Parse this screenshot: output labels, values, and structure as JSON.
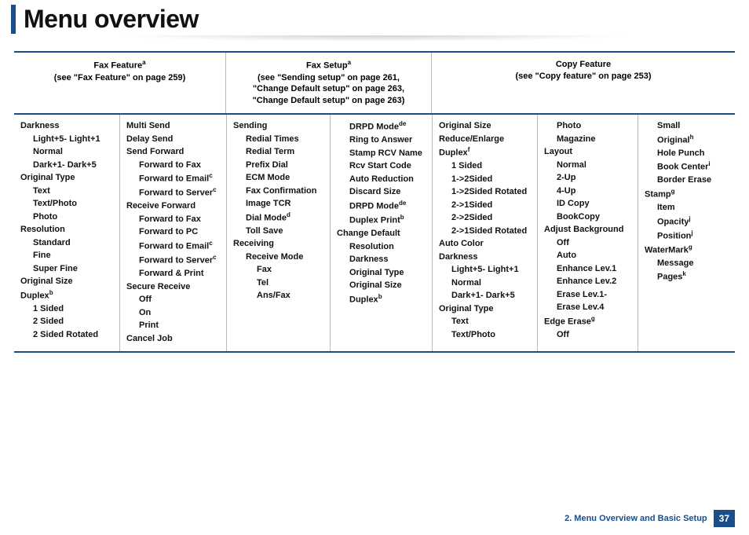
{
  "title": "Menu overview",
  "headers": {
    "faxFeature": {
      "title": "Fax Feature",
      "sup": "a",
      "sub": "(see \"Fax Feature\" on page 259)"
    },
    "faxSetup": {
      "title": "Fax Setup",
      "sup": "a",
      "sub1": "(see \"Sending setup\" on page 261,",
      "sub2": "\"Change Default setup\" on page 263,",
      "sub3": "\"Change Default setup\" on page 263)"
    },
    "copyFeature": {
      "title": "Copy Feature",
      "sub": "(see \"Copy feature\" on page 253)"
    }
  },
  "cols": {
    "c1": [
      {
        "t": "Darkness",
        "l": 0
      },
      {
        "t": "Light+5- Light+1",
        "l": 1
      },
      {
        "t": "Normal",
        "l": 1
      },
      {
        "t": "Dark+1- Dark+5",
        "l": 1
      },
      {
        "t": "Original Type",
        "l": 0
      },
      {
        "t": "Text",
        "l": 1
      },
      {
        "t": "Text/Photo",
        "l": 1
      },
      {
        "t": "Photo",
        "l": 1
      },
      {
        "t": "Resolution",
        "l": 0
      },
      {
        "t": "Standard",
        "l": 1
      },
      {
        "t": "Fine",
        "l": 1
      },
      {
        "t": "Super Fine",
        "l": 1
      },
      {
        "t": "Original Size",
        "l": 0
      },
      {
        "t": "Duplex",
        "sup": "b",
        "l": 0
      },
      {
        "t": "1 Sided",
        "l": 1
      },
      {
        "t": "2 Sided",
        "l": 1
      },
      {
        "t": "2 Sided Rotated",
        "l": 1
      }
    ],
    "c2": [
      {
        "t": "Multi Send",
        "l": 0
      },
      {
        "t": "Delay Send",
        "l": 0
      },
      {
        "t": "Send Forward",
        "l": 0
      },
      {
        "t": "Forward to Fax",
        "l": 1
      },
      {
        "t": "Forward to Email",
        "sup": "c",
        "l": 1
      },
      {
        "t": "Forward to Server",
        "sup": "c",
        "l": 1
      },
      {
        "t": "Receive Forward",
        "l": 0
      },
      {
        "t": "Forward to Fax",
        "l": 1
      },
      {
        "t": "Forward to PC",
        "l": 1
      },
      {
        "t": "Forward to Email",
        "sup": "c",
        "l": 1
      },
      {
        "t": "Forward to Server",
        "sup": "c",
        "l": 1
      },
      {
        "t": "Forward & Print",
        "l": 1
      },
      {
        "t": "Secure Receive",
        "l": 0
      },
      {
        "t": "Off",
        "l": 1
      },
      {
        "t": "On",
        "l": 1
      },
      {
        "t": "Print",
        "l": 1
      },
      {
        "t": "Cancel Job",
        "l": 0
      }
    ],
    "c3": [
      {
        "t": "Sending",
        "l": 0
      },
      {
        "t": "Redial Times",
        "l": 1
      },
      {
        "t": "Redial Term",
        "l": 1
      },
      {
        "t": "Prefix Dial",
        "l": 1
      },
      {
        "t": "ECM Mode",
        "l": 1
      },
      {
        "t": "Fax Confirmation",
        "l": 1
      },
      {
        "t": "Image TCR",
        "l": 1
      },
      {
        "t": "Dial Mode",
        "sup": "d",
        "l": 1
      },
      {
        "t": "Toll Save",
        "l": 1
      },
      {
        "t": "Receiving",
        "l": 0
      },
      {
        "t": "Receive Mode",
        "l": 1
      },
      {
        "t": "Fax",
        "l": 2
      },
      {
        "t": "Tel",
        "l": 2
      },
      {
        "t": "Ans/Fax",
        "l": 2
      }
    ],
    "c4": [
      {
        "t": "DRPD Mode",
        "sup": "de",
        "l": 1
      },
      {
        "t": "Ring to Answer",
        "l": 1
      },
      {
        "t": "Stamp RCV Name",
        "l": 1
      },
      {
        "t": "Rcv Start Code",
        "l": 1
      },
      {
        "t": "Auto Reduction",
        "l": 1
      },
      {
        "t": "Discard Size",
        "l": 1
      },
      {
        "t": "DRPD Mode",
        "sup": "de",
        "l": 1
      },
      {
        "t": "Duplex Print",
        "sup": "b",
        "l": 1
      },
      {
        "t": "Change Default",
        "l": 0
      },
      {
        "t": "Resolution",
        "l": 1
      },
      {
        "t": "Darkness",
        "l": 1
      },
      {
        "t": "Original Type",
        "l": 1
      },
      {
        "t": "Original Size",
        "l": 1
      },
      {
        "t": "Duplex",
        "sup": "b",
        "l": 1
      }
    ],
    "c5": [
      {
        "t": "Original Size",
        "l": 0
      },
      {
        "t": "Reduce/Enlarge",
        "l": 0
      },
      {
        "t": "Duplex",
        "sup": "f",
        "l": 0
      },
      {
        "t": "1 Sided",
        "l": 1
      },
      {
        "t": "1->2Sided",
        "l": 1
      },
      {
        "t": "1->2Sided Rotated",
        "l": 1
      },
      {
        "t": "2->1Sided",
        "l": 1
      },
      {
        "t": "2->2Sided",
        "l": 1
      },
      {
        "t": "2->1Sided Rotated",
        "l": 1
      },
      {
        "t": "Auto Color",
        "l": 0
      },
      {
        "t": "Darkness",
        "l": 0
      },
      {
        "t": "Light+5- Light+1",
        "l": 1
      },
      {
        "t": "Normal",
        "l": 1
      },
      {
        "t": "Dark+1- Dark+5",
        "l": 1
      },
      {
        "t": "Original Type",
        "l": 0
      },
      {
        "t": "Text",
        "l": 1
      },
      {
        "t": "Text/Photo",
        "l": 1
      }
    ],
    "c6": [
      {
        "t": "Photo",
        "l": 1
      },
      {
        "t": "Magazine",
        "l": 1
      },
      {
        "t": "Layout",
        "l": 0
      },
      {
        "t": "Normal",
        "l": 1
      },
      {
        "t": "2-Up",
        "l": 1
      },
      {
        "t": "4-Up",
        "l": 1
      },
      {
        "t": "ID Copy",
        "l": 1
      },
      {
        "t": "BookCopy",
        "l": 1
      },
      {
        "t": "Adjust Background",
        "l": 0
      },
      {
        "t": "Off",
        "l": 1
      },
      {
        "t": "Auto",
        "l": 1
      },
      {
        "t": "Enhance Lev.1",
        "l": 1
      },
      {
        "t": "Enhance Lev.2",
        "l": 1
      },
      {
        "t": "Erase Lev.1- Erase Lev.4",
        "l": 1
      },
      {
        "t": "Edge Erase",
        "sup": "g",
        "l": 0
      },
      {
        "t": "Off",
        "l": 1
      }
    ],
    "c7": [
      {
        "t": "Small",
        "l": 1
      },
      {
        "t": "Original",
        "sup": "h",
        "l": 1
      },
      {
        "t": "Hole Punch",
        "l": 1
      },
      {
        "t": "Book Center",
        "sup": "i",
        "l": 1
      },
      {
        "t": "Border Erase",
        "l": 1
      },
      {
        "t": "Stamp",
        "sup": "g",
        "l": 0
      },
      {
        "t": "Item",
        "l": 1
      },
      {
        "t": "Opacity",
        "sup": "j",
        "l": 1
      },
      {
        "t": "Position",
        "sup": "j",
        "l": 1
      },
      {
        "t": "WaterMark",
        "sup": "g",
        "l": 0
      },
      {
        "t": "Message",
        "l": 1
      },
      {
        "t": "Pages",
        "sup": "k",
        "l": 1
      }
    ]
  },
  "footer": {
    "text": "2. Menu Overview and Basic Setup",
    "page": "37"
  }
}
